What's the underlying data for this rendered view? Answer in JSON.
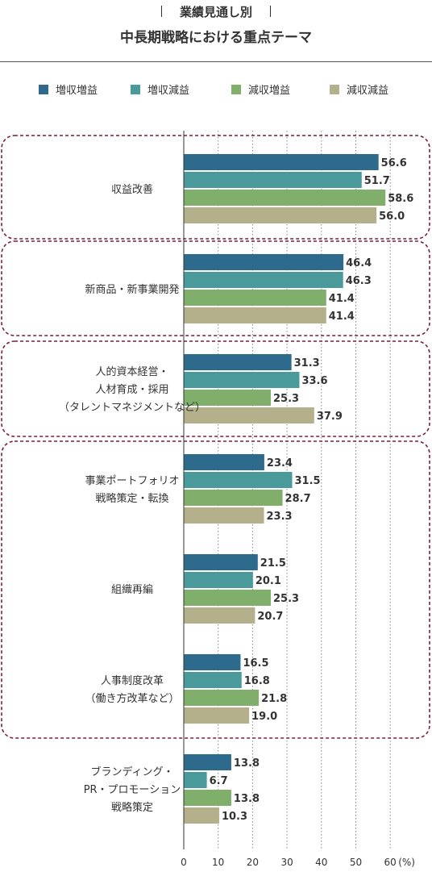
{
  "header": {
    "subtitle": "業績見通し別",
    "title": "中長期戦略における重点テーマ"
  },
  "colors": {
    "s1": "#2e6a8c",
    "s2": "#4a9a9c",
    "s3": "#7faf6a",
    "s4": "#b5b08c",
    "group_border": "#7a1f3d",
    "grid": "#888888"
  },
  "chart_data": {
    "type": "bar",
    "orientation": "horizontal",
    "title": "中長期戦略における重点テーマ",
    "subtitle": "業績見通し別",
    "legend_position": "top",
    "xlim": [
      0,
      60
    ],
    "xticks": [
      "0",
      "10",
      "20",
      "30",
      "40",
      "50",
      "60"
    ],
    "x_unit": "(%)",
    "grid": true,
    "series_names": [
      "増収増益",
      "増収減益",
      "減収増益",
      "減収減益"
    ],
    "categories": [
      {
        "label_lines": [
          "収益改善"
        ],
        "values": [
          56.6,
          51.7,
          58.6,
          56.0
        ],
        "labels": [
          "56.6",
          "51.7",
          "58.6",
          "56.0"
        ]
      },
      {
        "label_lines": [
          "新商品・新事業開発"
        ],
        "values": [
          46.4,
          46.3,
          41.4,
          41.4
        ],
        "labels": [
          "46.4",
          "46.3",
          "41.4",
          "41.4"
        ]
      },
      {
        "label_lines": [
          "人的資本経営・",
          "人材育成・採用",
          "（タレントマネジメントなど）"
        ],
        "values": [
          31.3,
          33.6,
          25.3,
          37.9
        ],
        "labels": [
          "31.3",
          "33.6",
          "25.3",
          "37.9"
        ]
      },
      {
        "label_lines": [
          "事業ポートフォリオ",
          "戦略策定・転換"
        ],
        "values": [
          23.4,
          31.5,
          28.7,
          23.3
        ],
        "labels": [
          "23.4",
          "31.5",
          "28.7",
          "23.3"
        ]
      },
      {
        "label_lines": [
          "組織再編"
        ],
        "values": [
          21.5,
          20.1,
          25.3,
          20.7
        ],
        "labels": [
          "21.5",
          "20.1",
          "25.3",
          "20.7"
        ]
      },
      {
        "label_lines": [
          "人事制度改革",
          "（働き方改革など）"
        ],
        "values": [
          16.5,
          16.8,
          21.8,
          19.0
        ],
        "labels": [
          "16.5",
          "16.8",
          "21.8",
          "19.0"
        ]
      },
      {
        "label_lines": [
          "ブランディング・",
          "PR・プロモーション",
          "戦略策定"
        ],
        "values": [
          13.8,
          6.7,
          13.8,
          10.3
        ],
        "labels": [
          "13.8",
          "6.7",
          "13.8",
          "10.3"
        ]
      }
    ],
    "highlight_groups": [
      [
        0
      ],
      [
        1
      ],
      [
        2
      ],
      [
        3,
        4,
        5
      ]
    ]
  }
}
